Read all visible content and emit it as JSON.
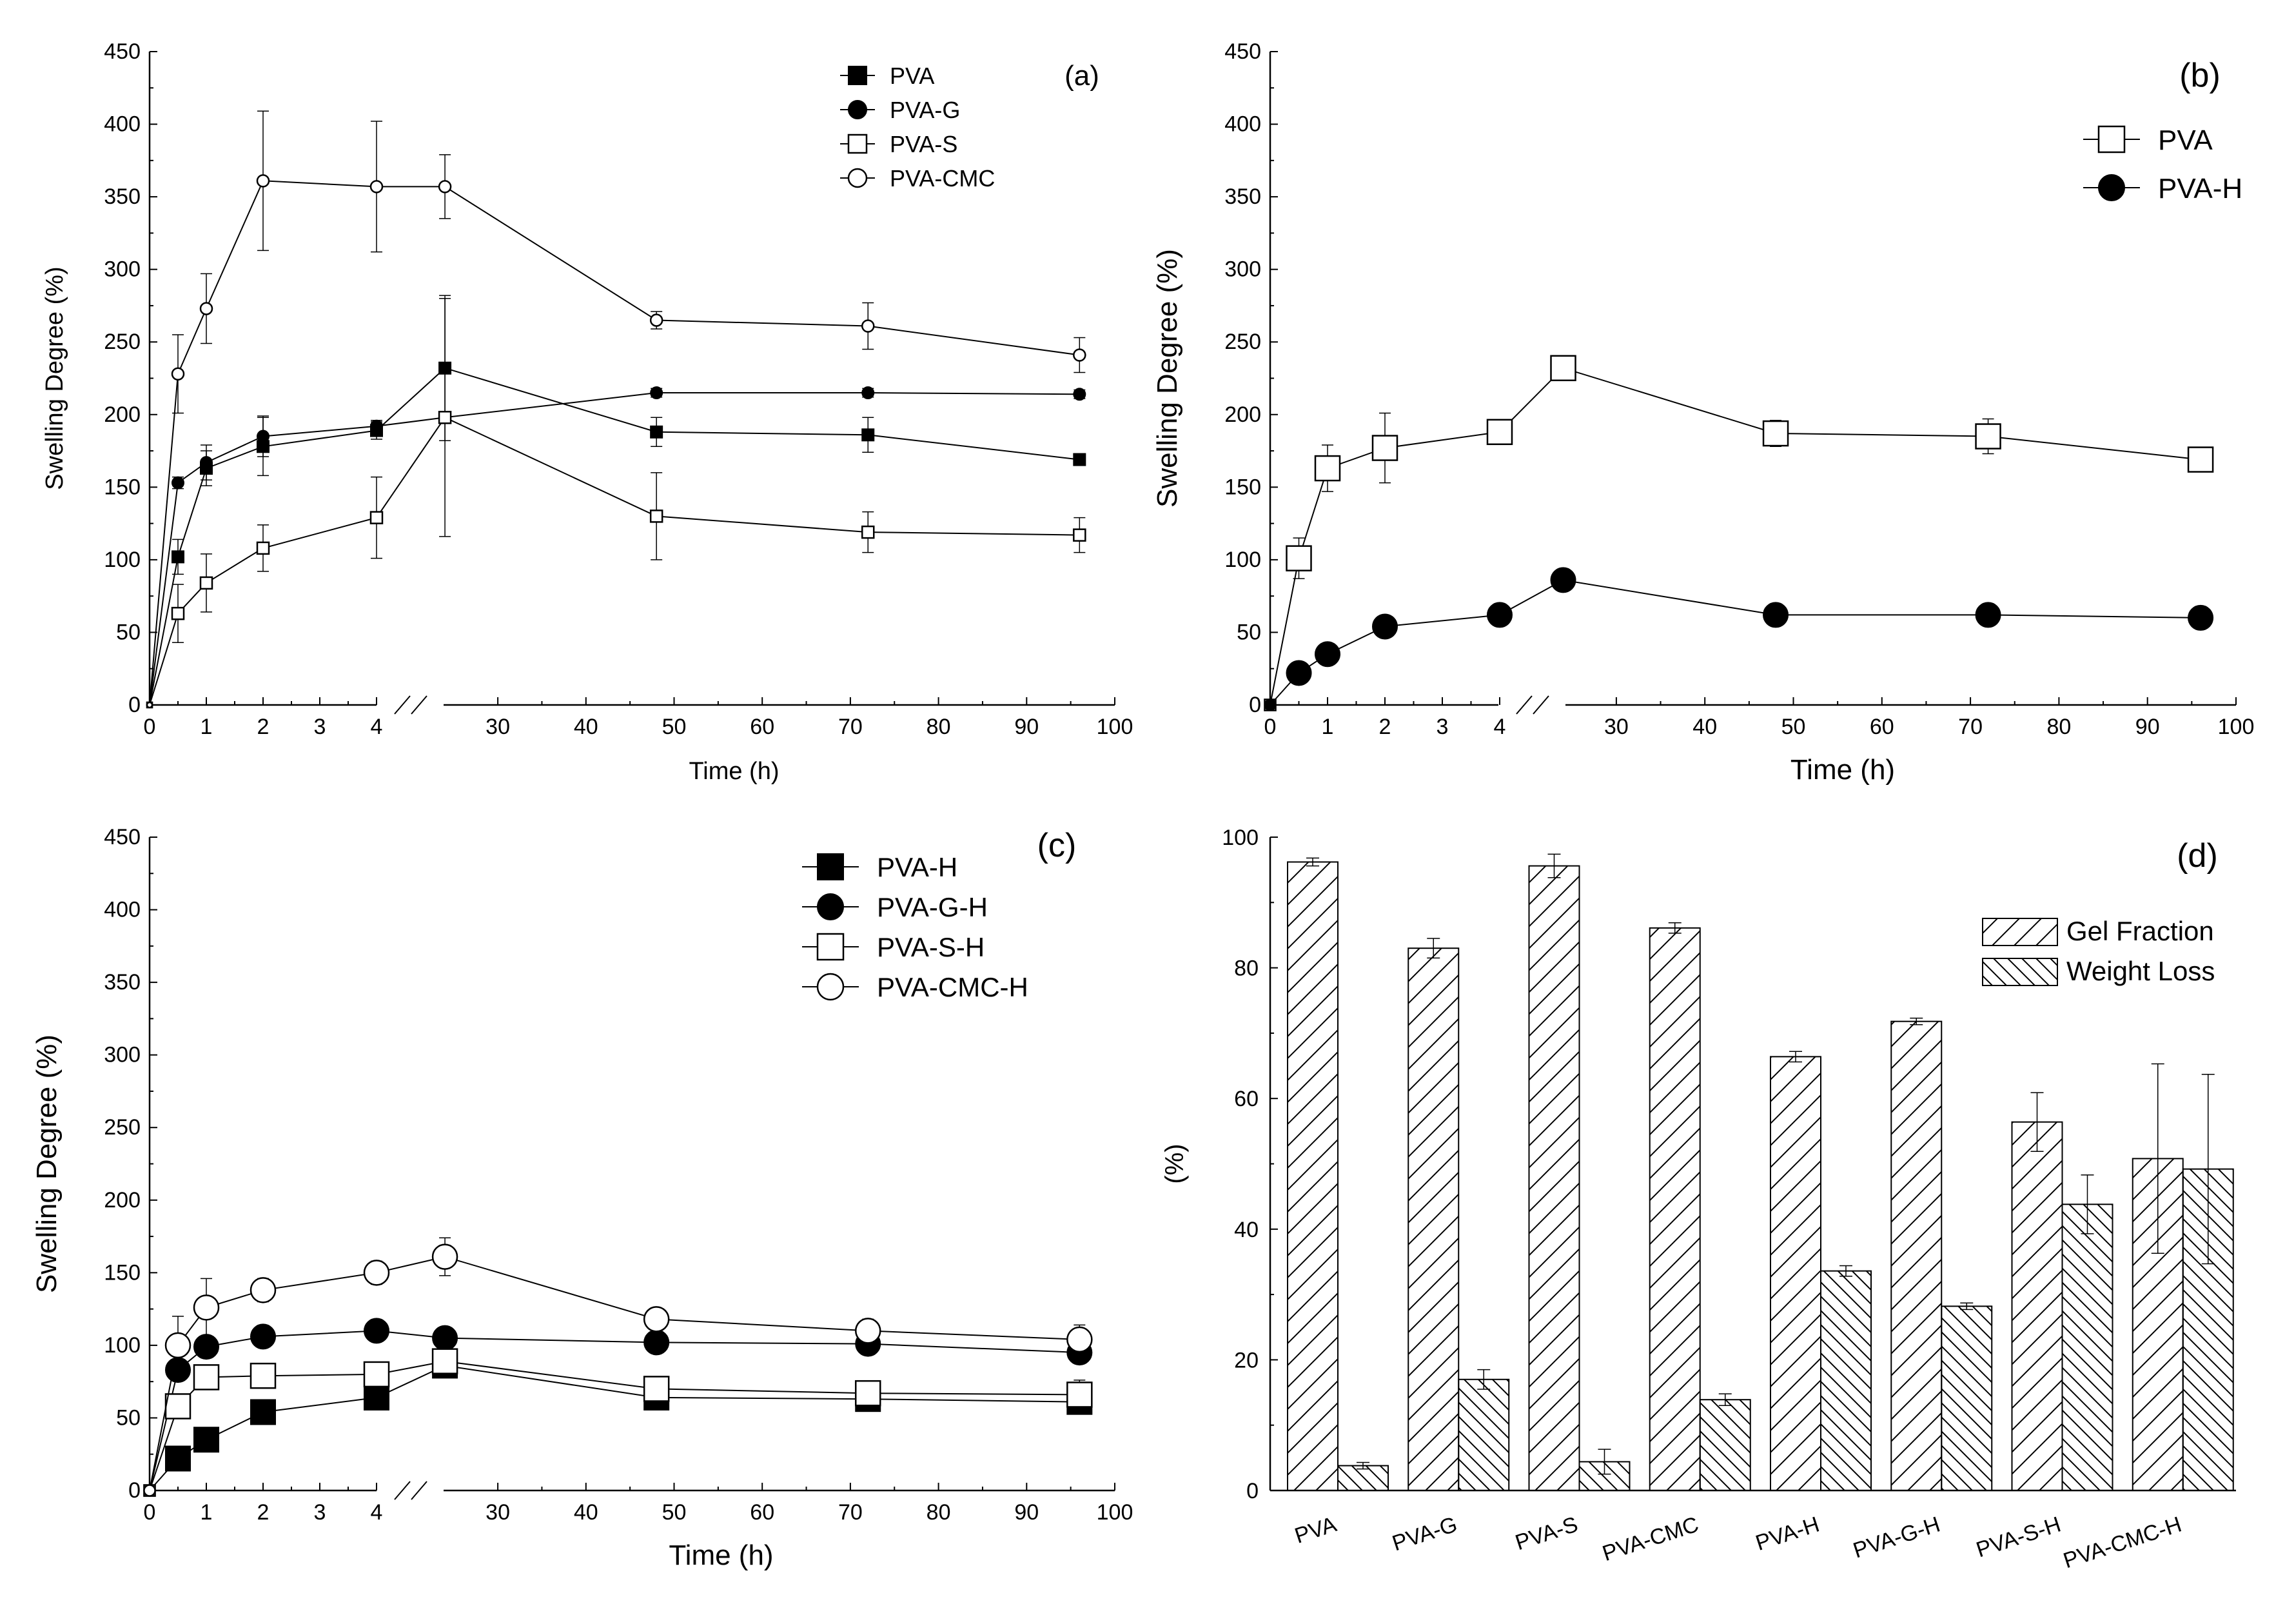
{
  "chart_data": [
    {
      "panel": "(a)",
      "type": "line",
      "ylabel": "Swelling Degree (%)",
      "xlabel": "Time (h)",
      "ylim": [
        0,
        450
      ],
      "yticks": [
        "0",
        "50",
        "100",
        "150",
        "200",
        "250",
        "300",
        "350",
        "400",
        "450"
      ],
      "xticks": [
        "0",
        "1",
        "2",
        "3",
        "4",
        "30",
        "40",
        "50",
        "60",
        "70",
        "80",
        "90",
        "100"
      ],
      "x": [
        0,
        0.5,
        1,
        2,
        4,
        24,
        48,
        72,
        96
      ],
      "legend_position": "top-right",
      "series": [
        {
          "name": "PVA",
          "marker": "square-filled",
          "values": [
            0,
            102,
            163,
            178,
            189,
            232,
            188,
            186,
            169
          ],
          "errors": [
            0,
            12,
            12,
            20,
            6,
            50,
            10,
            12,
            4
          ]
        },
        {
          "name": "PVA-G",
          "marker": "circle-filled",
          "values": [
            0,
            153,
            167,
            185,
            192,
            198,
            215,
            215,
            214
          ],
          "errors": [
            0,
            4,
            12,
            14,
            4,
            4,
            3,
            3,
            3
          ]
        },
        {
          "name": "PVA-S",
          "marker": "square-open",
          "values": [
            0,
            63,
            84,
            108,
            129,
            198,
            130,
            119,
            117
          ],
          "errors": [
            0,
            20,
            20,
            16,
            28,
            82,
            30,
            14,
            12
          ]
        },
        {
          "name": "PVA-CMC",
          "marker": "circle-open",
          "values": [
            0,
            228,
            273,
            361,
            357,
            357,
            265,
            261,
            241
          ],
          "errors": [
            0,
            27,
            24,
            48,
            45,
            22,
            6,
            16,
            12
          ]
        }
      ]
    },
    {
      "panel": "(b)",
      "type": "line",
      "ylabel": "Swelling Degree (%)",
      "xlabel": "Time (h)",
      "ylim": [
        0,
        450
      ],
      "yticks": [
        "0",
        "50",
        "100",
        "150",
        "200",
        "250",
        "300",
        "350",
        "400",
        "450"
      ],
      "xticks": [
        "0",
        "1",
        "2",
        "3",
        "4",
        "30",
        "40",
        "50",
        "60",
        "70",
        "80",
        "90",
        "100"
      ],
      "x": [
        0,
        0.5,
        1,
        2,
        4,
        24,
        48,
        72,
        96
      ],
      "legend_position": "top-right",
      "series": [
        {
          "name": "PVA",
          "marker": "square-open",
          "values": [
            0,
            101,
            163,
            177,
            188,
            232,
            187,
            185,
            169
          ],
          "errors": [
            0,
            14,
            16,
            24,
            7,
            8,
            9,
            12,
            6
          ]
        },
        {
          "name": "PVA-H",
          "marker": "circle-filled",
          "values": [
            0,
            22,
            35,
            54,
            62,
            86,
            62,
            62,
            60
          ],
          "errors": [
            0,
            2,
            2,
            3,
            3,
            4,
            2,
            2,
            2
          ]
        }
      ]
    },
    {
      "panel": "(c)",
      "type": "line",
      "ylabel": "Swelling Degree (%)",
      "xlabel": "Time (h)",
      "ylim": [
        0,
        450
      ],
      "yticks": [
        "0",
        "50",
        "100",
        "150",
        "200",
        "250",
        "300",
        "350",
        "400",
        "450"
      ],
      "xticks": [
        "0",
        "1",
        "2",
        "3",
        "4",
        "30",
        "40",
        "50",
        "60",
        "70",
        "80",
        "90",
        "100"
      ],
      "x": [
        0,
        0.5,
        1,
        2,
        4,
        24,
        48,
        72,
        96
      ],
      "legend_position": "top-right",
      "series": [
        {
          "name": "PVA-H",
          "marker": "square-filled",
          "values": [
            0,
            22,
            35,
            54,
            64,
            86,
            64,
            63,
            61
          ],
          "errors": [
            0,
            2,
            2,
            3,
            3,
            3,
            2,
            2,
            2
          ]
        },
        {
          "name": "PVA-G-H",
          "marker": "circle-filled",
          "values": [
            0,
            83,
            99,
            106,
            110,
            105,
            102,
            101,
            95
          ],
          "errors": [
            0,
            3,
            4,
            4,
            4,
            4,
            4,
            4,
            4
          ]
        },
        {
          "name": "PVA-S-H",
          "marker": "square-open",
          "values": [
            0,
            58,
            78,
            79,
            80,
            89,
            70,
            67,
            66
          ],
          "errors": [
            0,
            4,
            6,
            7,
            8,
            8,
            8,
            8,
            10
          ]
        },
        {
          "name": "PVA-CMC-H",
          "marker": "circle-open",
          "values": [
            0,
            100,
            126,
            138,
            150,
            161,
            118,
            110,
            104
          ],
          "errors": [
            0,
            20,
            20,
            8,
            8,
            13,
            6,
            8,
            10
          ]
        }
      ]
    },
    {
      "panel": "(d)",
      "type": "bar",
      "ylabel": "(%)",
      "ylim": [
        0,
        100
      ],
      "yticks": [
        "0",
        "20",
        "40",
        "60",
        "80",
        "100"
      ],
      "categories": [
        "PVA",
        "PVA-G",
        "PVA-S",
        "PVA-CMC",
        "PVA-H",
        "PVA-G-H",
        "PVA-S-H",
        "PVA-CMC-H"
      ],
      "legend_position": "top-right",
      "series": [
        {
          "name": "Gel Fraction",
          "hatch": "forward-diagonal",
          "values": [
            96.2,
            83.0,
            95.6,
            86.1,
            66.4,
            71.8,
            56.4,
            50.8
          ],
          "errors": [
            0.6,
            1.5,
            1.8,
            0.8,
            0.8,
            0.5,
            4.5,
            14.5
          ]
        },
        {
          "name": "Weight Loss",
          "hatch": "back-diagonal",
          "values": [
            3.8,
            17.0,
            4.4,
            13.9,
            33.6,
            28.2,
            43.8,
            49.2
          ],
          "errors": [
            0.5,
            1.5,
            1.9,
            0.9,
            0.8,
            0.5,
            4.5,
            14.5
          ]
        }
      ]
    }
  ]
}
